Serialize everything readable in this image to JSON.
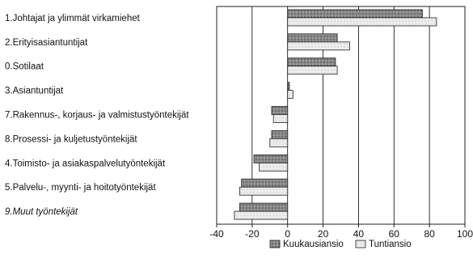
{
  "chart_data": {
    "type": "bar",
    "orientation": "horizontal",
    "categories": [
      "1.Johtajat ja ylimmät virkamiehet",
      "2.Erityisasiantuntijat",
      "0.Sotilaat",
      "3.Asiantuntijat",
      "7.Rakennus-, korjaus- ja valmistustyöntekijät",
      "8.Prosessi- ja kuljetustyöntekijät",
      "4.Toimisto- ja asiakaspalvelutyöntekijät",
      "5.Palvelu-, myynti- ja hoitotyöntekijät",
      "9.Muut työntekijät"
    ],
    "italic_categories": [
      8
    ],
    "series": [
      {
        "name": "Kuukausiansio",
        "values": [
          76,
          28,
          27,
          1,
          -9,
          -9,
          -19,
          -26,
          -27
        ]
      },
      {
        "name": "Tuntiansio",
        "values": [
          84,
          35,
          28,
          3,
          -8,
          -10,
          -16,
          -27,
          -30
        ]
      }
    ],
    "xlim": [
      -40,
      100
    ],
    "xticks": [
      -40,
      -20,
      0,
      20,
      40,
      60,
      80,
      100
    ],
    "grid": "vertical",
    "legend_position": "bottom-right",
    "colors": {
      "Kuukausiansio": "#8c8c8c",
      "Tuntiansio": "#e2e2e2",
      "grid": "#000000",
      "outline": "#222222"
    }
  }
}
